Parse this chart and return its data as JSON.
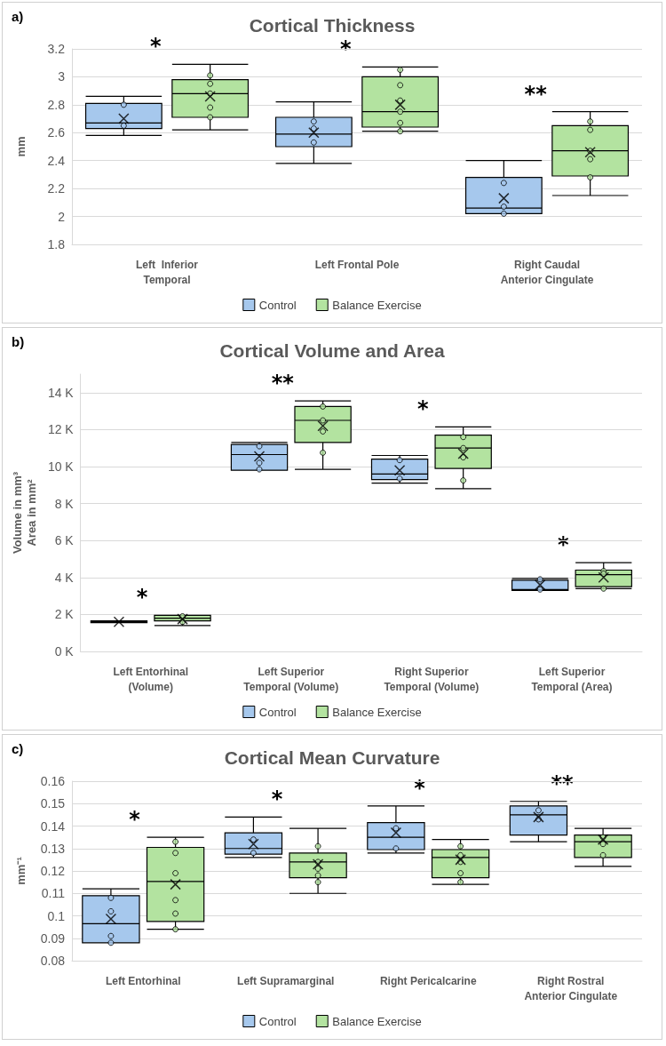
{
  "chart_data": [
    {
      "type": "box",
      "title": "Cortical Thickness",
      "ylabel": "mm",
      "categories": [
        "Left  Inferior\nTemporal",
        "Left Frontal Pole",
        "Right Caudal\nAnterior Cingulate"
      ],
      "ylim": [
        1.8,
        3.2
      ],
      "yticks": [
        1.8,
        2,
        2.2,
        2.4,
        2.6,
        2.8,
        3,
        3.2
      ],
      "grid": "y",
      "legend": "bottom",
      "annotations": [
        "a)",
        "*",
        "*",
        "**"
      ],
      "series": [
        {
          "name": "Control",
          "color": "#a6c8ed",
          "boxes": [
            {
              "low": 2.58,
              "q1": 2.63,
              "median": 2.67,
              "q3": 2.81,
              "high": 2.86,
              "mean": 2.7,
              "outliers": [
                2.8,
                2.65
              ]
            },
            {
              "low": 2.38,
              "q1": 2.5,
              "median": 2.59,
              "q3": 2.71,
              "high": 2.82,
              "mean": 2.6,
              "outliers": [
                2.68,
                2.63,
                2.53
              ]
            },
            {
              "low": 2.02,
              "q1": 2.02,
              "median": 2.06,
              "q3": 2.28,
              "high": 2.4,
              "mean": 2.13,
              "outliers": [
                2.24,
                2.07,
                2.02
              ]
            }
          ]
        },
        {
          "name": "Balance Exercise",
          "color": "#b3e3a0",
          "boxes": [
            {
              "low": 2.62,
              "q1": 2.71,
              "median": 2.88,
              "q3": 2.98,
              "high": 3.09,
              "mean": 2.86,
              "outliers": [
                3.01,
                2.95,
                2.88,
                2.78,
                2.71
              ]
            },
            {
              "low": 2.61,
              "q1": 2.64,
              "median": 2.75,
              "q3": 3.0,
              "high": 3.07,
              "mean": 2.8,
              "outliers": [
                3.05,
                2.94,
                2.83,
                2.75,
                2.67,
                2.61
              ]
            },
            {
              "low": 2.15,
              "q1": 2.29,
              "median": 2.47,
              "q3": 2.65,
              "high": 2.75,
              "mean": 2.46,
              "outliers": [
                2.68,
                2.62,
                2.47,
                2.41,
                2.28
              ]
            }
          ]
        }
      ]
    },
    {
      "type": "box",
      "title": "Cortical Volume and Area",
      "ylabel": "Volume in mm³\nArea in mm²",
      "categories": [
        "Left Entorhinal\n(Volume)",
        "Left Superior\nTemporal (Volume)",
        "Right Superior\nTemporal (Volume)",
        "Left Superior\nTemporal (Area)"
      ],
      "ylim": [
        0,
        15000
      ],
      "yticks": [
        {
          "value": 0,
          "label": "0 K"
        },
        {
          "value": 2000,
          "label": "2 K"
        },
        {
          "value": 4000,
          "label": "4 K"
        },
        {
          "value": 6000,
          "label": "6 K"
        },
        {
          "value": 8000,
          "label": "8 K"
        },
        {
          "value": 10000,
          "label": "10 K"
        },
        {
          "value": 12000,
          "label": "12 K"
        },
        {
          "value": 14000,
          "label": "14 K"
        }
      ],
      "grid": "y",
      "legend": "bottom",
      "annotations": [
        "b)",
        "*",
        "**",
        "*",
        "*"
      ],
      "series": [
        {
          "name": "Control",
          "color": "#a6c8ed",
          "boxes": [
            {
              "low": 1550,
              "q1": 1550,
              "median": 1600,
              "q3": 1650,
              "high": 1650,
              "mean": 1600
            },
            {
              "low": 9800,
              "q1": 9800,
              "median": 10650,
              "q3": 11200,
              "high": 11300,
              "mean": 10550,
              "outliers": [
                11100,
                10200,
                9850
              ]
            },
            {
              "low": 9100,
              "q1": 9300,
              "median": 9600,
              "q3": 10400,
              "high": 10600,
              "mean": 9800,
              "outliers": [
                10350,
                9350
              ]
            },
            {
              "low": 3300,
              "q1": 3300,
              "median": 3350,
              "q3": 3850,
              "high": 3950,
              "mean": 3600,
              "outliers": [
                3900,
                3350
              ]
            }
          ]
        },
        {
          "name": "Balance Exercise",
          "color": "#b3e3a0",
          "boxes": [
            {
              "low": 1400,
              "q1": 1650,
              "median": 1800,
              "q3": 1950,
              "high": 1950,
              "mean": 1750,
              "outliers": [
                1900,
                1600
              ]
            },
            {
              "low": 9850,
              "q1": 11300,
              "median": 12500,
              "q3": 13250,
              "high": 13550,
              "mean": 12200,
              "outliers": [
                13250,
                12500,
                11900,
                10750
              ]
            },
            {
              "low": 8800,
              "q1": 9900,
              "median": 11000,
              "q3": 11700,
              "high": 12150,
              "mean": 10700,
              "outliers": [
                11600,
                11000,
                10500,
                9250
              ]
            },
            {
              "low": 3400,
              "q1": 3500,
              "median": 4150,
              "q3": 4400,
              "high": 4800,
              "mean": 4000,
              "outliers": [
                4350,
                4200,
                3400
              ]
            }
          ]
        }
      ]
    },
    {
      "type": "box",
      "title": "Cortical Mean Curvature",
      "ylabel": "mm⁻¹",
      "categories": [
        "Left Entorhinal",
        "Left Supramarginal",
        "Right Pericalcarine",
        "Right Rostral\nAnterior Cingulate"
      ],
      "ylim": [
        0.08,
        0.16
      ],
      "yticks": [
        0.08,
        0.09,
        0.1,
        0.11,
        0.12,
        0.13,
        0.14,
        0.15,
        0.16
      ],
      "grid": "y",
      "legend": "bottom",
      "annotations": [
        "c)",
        "*",
        "*",
        "*",
        "**"
      ],
      "series": [
        {
          "name": "Control",
          "color": "#a6c8ed",
          "boxes": [
            {
              "low": 0.088,
              "q1": 0.088,
              "median": 0.0965,
              "q3": 0.109,
              "high": 0.112,
              "mean": 0.0986,
              "outliers": [
                0.108,
                0.102,
                0.091,
                0.088
              ]
            },
            {
              "low": 0.126,
              "q1": 0.1275,
              "median": 0.13,
              "q3": 0.137,
              "high": 0.144,
              "mean": 0.132,
              "outliers": [
                0.134,
                0.128
              ]
            },
            {
              "low": 0.128,
              "q1": 0.1295,
              "median": 0.135,
              "q3": 0.1415,
              "high": 0.149,
              "mean": 0.137,
              "outliers": [
                0.139,
                0.13
              ]
            },
            {
              "low": 0.133,
              "q1": 0.136,
              "median": 0.145,
              "q3": 0.149,
              "high": 0.151,
              "mean": 0.144,
              "outliers": [
                0.147,
                0.143
              ]
            }
          ]
        },
        {
          "name": "Balance Exercise",
          "color": "#b3e3a0",
          "boxes": [
            {
              "low": 0.094,
              "q1": 0.0975,
              "median": 0.1153,
              "q3": 0.1305,
              "high": 0.135,
              "mean": 0.114,
              "outliers": [
                0.133,
                0.128,
                0.119,
                0.107,
                0.101,
                0.094
              ]
            },
            {
              "low": 0.11,
              "q1": 0.117,
              "median": 0.124,
              "q3": 0.128,
              "high": 0.139,
              "mean": 0.123,
              "outliers": [
                0.131,
                0.124,
                0.121,
                0.118,
                0.115
              ]
            },
            {
              "low": 0.114,
              "q1": 0.117,
              "median": 0.126,
              "q3": 0.1295,
              "high": 0.134,
              "mean": 0.125,
              "outliers": [
                0.131,
                0.127,
                0.124,
                0.119,
                0.115
              ]
            },
            {
              "low": 0.122,
              "q1": 0.126,
              "median": 0.133,
              "q3": 0.136,
              "high": 0.139,
              "mean": 0.134,
              "outliers": [
                0.135,
                0.132,
                0.127
              ]
            }
          ]
        }
      ]
    }
  ]
}
